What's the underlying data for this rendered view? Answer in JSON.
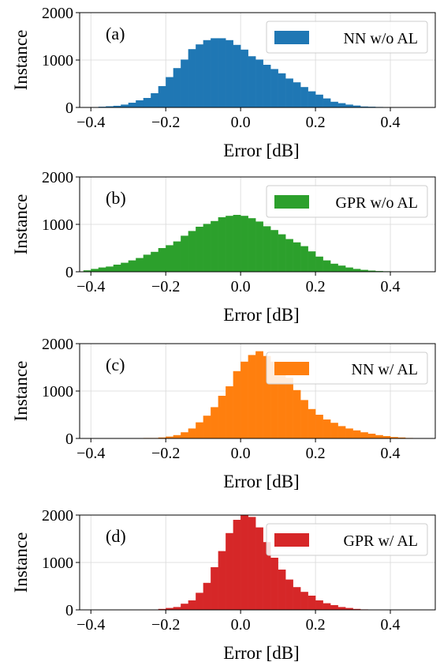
{
  "chart_data": [
    {
      "type": "bar",
      "panel_label": "(a)",
      "xlabel": "Error [dB]",
      "ylabel": "Instance",
      "xlim": [
        -0.43,
        0.52
      ],
      "ylim": [
        0,
        2000
      ],
      "xticks": [
        -0.4,
        -0.2,
        0.0,
        0.2,
        0.4
      ],
      "xtick_labels": [
        "−0.4",
        "−0.2",
        "0.0",
        "0.2",
        "0.4"
      ],
      "yticks": [
        0,
        1000,
        2000
      ],
      "ytick_labels": [
        "0",
        "1000",
        "2000"
      ],
      "grid": true,
      "legend_position": "top-right",
      "series": [
        {
          "name": "NN w/o AL",
          "color": "#1f77b4",
          "bin_start": -0.4,
          "bin_width": 0.02,
          "values": [
            5,
            15,
            25,
            35,
            60,
            100,
            150,
            200,
            300,
            450,
            640,
            830,
            1010,
            1230,
            1330,
            1420,
            1460,
            1460,
            1420,
            1320,
            1220,
            1080,
            1010,
            900,
            810,
            720,
            610,
            530,
            430,
            340,
            270,
            190,
            120,
            90,
            60,
            40,
            20,
            15,
            10,
            5,
            3,
            2,
            1
          ]
        }
      ]
    },
    {
      "type": "bar",
      "panel_label": "(b)",
      "xlabel": "Error [dB]",
      "ylabel": "Instance",
      "xlim": [
        -0.43,
        0.52
      ],
      "ylim": [
        0,
        2000
      ],
      "xticks": [
        -0.4,
        -0.2,
        0.0,
        0.2,
        0.4
      ],
      "xtick_labels": [
        "−0.4",
        "−0.2",
        "0.0",
        "0.2",
        "0.4"
      ],
      "yticks": [
        0,
        1000,
        2000
      ],
      "ytick_labels": [
        "0",
        "1000",
        "2000"
      ],
      "grid": true,
      "legend_position": "top-right",
      "series": [
        {
          "name": "GPR w/o AL",
          "color": "#2ca02c",
          "bin_start": -0.42,
          "bin_width": 0.02,
          "values": [
            30,
            60,
            90,
            110,
            150,
            190,
            240,
            290,
            360,
            420,
            500,
            560,
            640,
            760,
            860,
            950,
            1010,
            1070,
            1150,
            1180,
            1200,
            1180,
            1130,
            1060,
            960,
            880,
            790,
            690,
            620,
            540,
            430,
            320,
            240,
            170,
            130,
            90,
            60,
            40,
            25,
            15,
            10,
            5,
            3
          ]
        }
      ]
    },
    {
      "type": "bar",
      "panel_label": "(c)",
      "xlabel": "Error [dB]",
      "ylabel": "Instance",
      "xlim": [
        -0.43,
        0.52
      ],
      "ylim": [
        0,
        2000
      ],
      "xticks": [
        -0.4,
        -0.2,
        0.0,
        0.2,
        0.4
      ],
      "xtick_labels": [
        "−0.4",
        "−0.2",
        "0.0",
        "0.2",
        "0.4"
      ],
      "yticks": [
        0,
        1000,
        2000
      ],
      "ytick_labels": [
        "0",
        "1000",
        "2000"
      ],
      "grid": true,
      "legend_position": "top-right",
      "series": [
        {
          "name": "NN w/ AL",
          "color": "#ff7f0e",
          "bin_start": -0.38,
          "bin_width": 0.02,
          "values": [
            5,
            5,
            5,
            5,
            5,
            5,
            10,
            10,
            20,
            40,
            70,
            130,
            210,
            340,
            480,
            660,
            900,
            1100,
            1420,
            1620,
            1760,
            1840,
            1740,
            1620,
            1470,
            1280,
            1020,
            810,
            620,
            500,
            400,
            330,
            260,
            210,
            170,
            130,
            100,
            70,
            50,
            30,
            20,
            10,
            5,
            3,
            2
          ]
        }
      ]
    },
    {
      "type": "bar",
      "panel_label": "(d)",
      "xlabel": "Error [dB]",
      "ylabel": "Instance",
      "xlim": [
        -0.43,
        0.52
      ],
      "ylim": [
        0,
        2000
      ],
      "xticks": [
        -0.4,
        -0.2,
        0.0,
        0.2,
        0.4
      ],
      "xtick_labels": [
        "−0.4",
        "−0.2",
        "0.0",
        "0.2",
        "0.4"
      ],
      "yticks": [
        0,
        1000,
        2000
      ],
      "ytick_labels": [
        "0",
        "1000",
        "2000"
      ],
      "grid": true,
      "legend_position": "top-right",
      "series": [
        {
          "name": "GPR w/ AL",
          "color": "#d62728",
          "bin_start": -0.22,
          "bin_width": 0.02,
          "values": [
            20,
            40,
            60,
            130,
            200,
            360,
            570,
            900,
            1240,
            1620,
            1900,
            2000,
            1960,
            1740,
            1430,
            1100,
            850,
            640,
            480,
            380,
            300,
            200,
            140,
            100,
            60,
            40,
            20,
            10,
            5
          ]
        }
      ]
    }
  ]
}
